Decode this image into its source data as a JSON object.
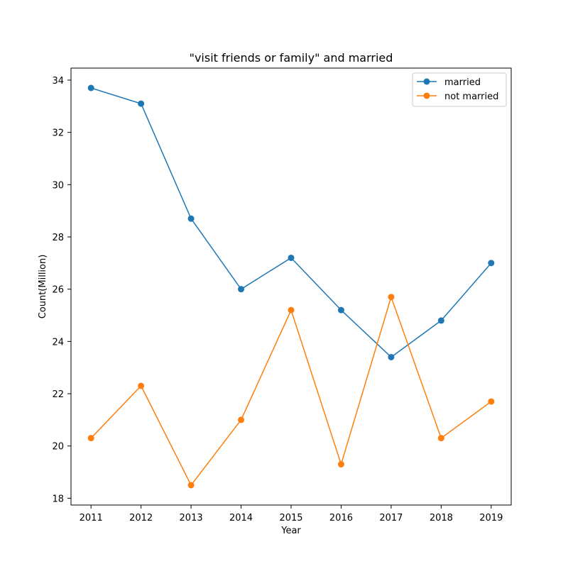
{
  "chart_data": {
    "type": "line",
    "title": "\"visit friends or family\" and married",
    "xlabel": "Year",
    "ylabel": "Count(Million)",
    "x": [
      2011,
      2012,
      2013,
      2014,
      2015,
      2016,
      2017,
      2018,
      2019
    ],
    "xticks": [
      "2011",
      "2012",
      "2013",
      "2014",
      "2015",
      "2016",
      "2017",
      "2018",
      "2019"
    ],
    "yticks": [
      "18",
      "20",
      "22",
      "24",
      "26",
      "28",
      "30",
      "32",
      "34"
    ],
    "xlim": [
      2010.6,
      2019.4
    ],
    "ylim": [
      17.74,
      34.46
    ],
    "grid": false,
    "legend_position": "top-right",
    "series": [
      {
        "name": "married",
        "color": "#1f77b4",
        "marker": "circle",
        "values": [
          33.7,
          33.1,
          28.7,
          26.0,
          27.2,
          25.2,
          23.4,
          24.8,
          27.0
        ]
      },
      {
        "name": "not married",
        "color": "#ff7f0e",
        "marker": "circle",
        "values": [
          20.3,
          22.3,
          18.5,
          21.0,
          25.2,
          19.3,
          25.7,
          20.3,
          21.7
        ]
      }
    ]
  }
}
